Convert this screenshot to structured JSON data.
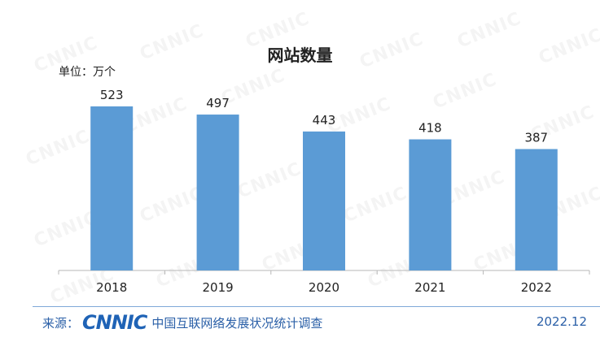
{
  "chart_data": {
    "type": "bar",
    "title": "网站数量",
    "unit_label": "单位：万个",
    "categories": [
      "2018",
      "2019",
      "2020",
      "2021",
      "2022"
    ],
    "values": [
      523,
      497,
      443,
      418,
      387
    ],
    "ylim": [
      0,
      600
    ],
    "bar_color": "#5b9bd5",
    "grid": false,
    "legend": "none"
  },
  "watermark": "CNNIC",
  "footer": {
    "source_label": "来源：",
    "logo": "CNNIC",
    "survey": "中国互联网络发展状况统计调查",
    "date": "2022.12"
  },
  "colors": {
    "footer_text": "#2a5fa7",
    "footer_line": "#7fa8d8"
  }
}
